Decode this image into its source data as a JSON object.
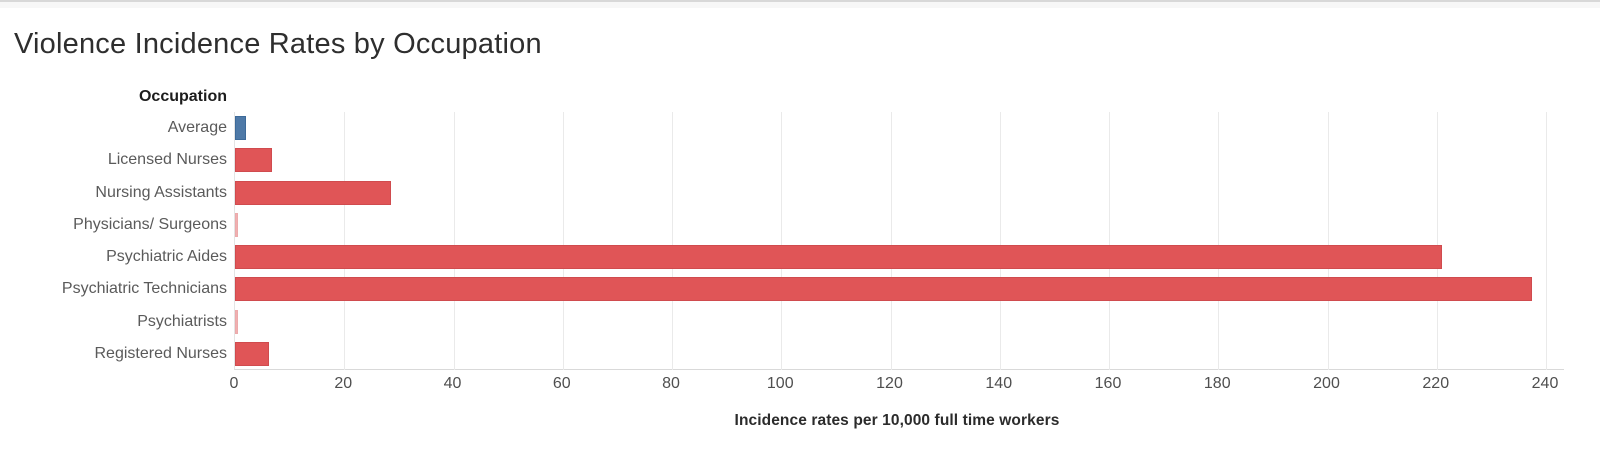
{
  "chart_data": {
    "type": "bar",
    "orientation": "horizontal",
    "title": "Violence Incidence Rates by Occupation",
    "category_header": "Occupation",
    "xlabel": "Incidence rates per 10,000 full time workers",
    "xlim": [
      0,
      243
    ],
    "xticks": [
      0,
      20,
      40,
      60,
      80,
      100,
      120,
      140,
      160,
      180,
      200,
      220,
      240
    ],
    "grid": "vertical-light-gray",
    "legend": "none",
    "bars": [
      {
        "label": "Average",
        "value": 2.0,
        "fill": "#4e79a7",
        "border": "#3d6a99"
      },
      {
        "label": "Licensed Nurses",
        "value": 6.8,
        "fill": "#e05557",
        "border": "#d04b4e"
      },
      {
        "label": "Nursing Assistants",
        "value": 28.5,
        "fill": "#e05557",
        "border": "#d04b4e"
      },
      {
        "label": "Physicians/ Surgeons",
        "value": 0.5,
        "fill": "#f0b0b1",
        "border": "#ecaaab"
      },
      {
        "label": "Psychiatric Aides",
        "value": 221.0,
        "fill": "#e05557",
        "border": "#d04b4e"
      },
      {
        "label": "Psychiatric Technicians",
        "value": 237.5,
        "fill": "#e05557",
        "border": "#d04b4e"
      },
      {
        "label": "Psychiatrists",
        "value": 0.6,
        "fill": "#f0b0b1",
        "border": "#ecaaab"
      },
      {
        "label": "Registered Nurses",
        "value": 6.2,
        "fill": "#e05557",
        "border": "#d04b4e"
      }
    ],
    "colors": {
      "highlight_blue": "#4e79a7",
      "bar_red": "#e05557",
      "gridline": "#eaeaea",
      "axis_line": "#d9d9d9",
      "label_text": "#5a5a5a",
      "tick_text": "#4f4f4f"
    }
  }
}
